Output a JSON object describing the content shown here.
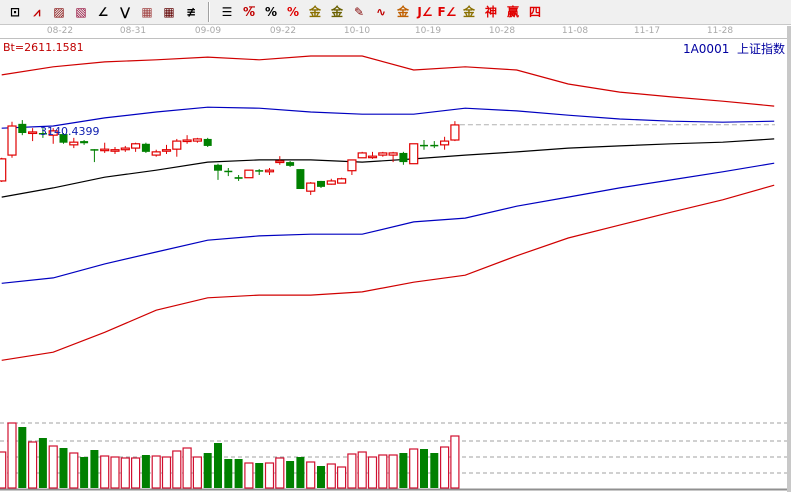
{
  "toolbar": {
    "tools": [
      {
        "name": "rect-tool-icon",
        "glyph": "⊡",
        "color": "#000"
      },
      {
        "name": "fan-lines-icon",
        "glyph": "⩘",
        "color": "#c00000"
      },
      {
        "name": "gann-fan-icon",
        "glyph": "▨",
        "color": "#800000"
      },
      {
        "name": "gann-box-icon",
        "glyph": "▧",
        "color": "#900030"
      },
      {
        "name": "angle-line-icon",
        "glyph": "∠",
        "color": "#000"
      },
      {
        "name": "zigzag-icon",
        "glyph": "⋁",
        "color": "#000"
      },
      {
        "name": "grid-icon",
        "glyph": "▦",
        "color": "#a04040"
      },
      {
        "name": "grid-dark-icon",
        "glyph": "▦",
        "color": "#600000"
      },
      {
        "name": "parallel-lines-icon",
        "glyph": "≢",
        "color": "#000"
      },
      {
        "sep": true
      },
      {
        "name": "bars-icon",
        "glyph": "☰",
        "color": "#000"
      },
      {
        "name": "percent-line-icon",
        "glyph": "%̅",
        "color": "#c00000"
      },
      {
        "name": "percent-icon",
        "glyph": "%",
        "color": "#000"
      },
      {
        "name": "percent-red-icon",
        "glyph": "%",
        "color": "#e00000"
      },
      {
        "name": "gold-circle-icon",
        "glyph": "金",
        "color": "#8a7000"
      },
      {
        "name": "gold-lines-icon",
        "glyph": "金",
        "color": "#6a6000"
      },
      {
        "name": "pen-icon",
        "glyph": "✎",
        "color": "#800000"
      },
      {
        "name": "wave-icon",
        "glyph": "∿",
        "color": "#c00000"
      },
      {
        "name": "gold-red-icon",
        "glyph": "金",
        "color": "#c06000"
      },
      {
        "name": "j-lines-icon",
        "glyph": "J∠",
        "color": "#e00000"
      },
      {
        "name": "f-lines-icon",
        "glyph": "F∠",
        "color": "#e00000"
      },
      {
        "name": "gold-angle-icon",
        "glyph": "金",
        "color": "#8a7000"
      },
      {
        "name": "shen-icon",
        "glyph": "神",
        "color": "#e00000"
      },
      {
        "name": "ying-icon",
        "glyph": "赢",
        "color": "#e00000"
      },
      {
        "name": "si-icon",
        "glyph": "四",
        "color": "#e00000"
      }
    ]
  },
  "header": {
    "bt_label": "Bt=2611.1581",
    "code": "1A0001",
    "name": "上证指数",
    "price_label": "3140.4399"
  },
  "dates": [
    "08-22",
    "08-31",
    "09-09",
    "09-22",
    "10-10",
    "10-19",
    "10-28",
    "11-08",
    "11-17",
    "11-28"
  ],
  "colors": {
    "up": "#e00000",
    "down": "#008000",
    "upper_outer": "#d00000",
    "upper_inner": "#0000c0",
    "mid": "#000000",
    "lower_inner": "#0000c0",
    "lower_outer": "#d00000",
    "grid": "#a0a0a0"
  },
  "chart_data": {
    "type": "candlestick",
    "ohlc": [
      [
        3036,
        3079,
        3034,
        3077
      ],
      [
        3084,
        3146,
        3079,
        3138
      ],
      [
        3142,
        3149,
        3121,
        3125
      ],
      [
        3125,
        3134,
        3110,
        3127
      ],
      [
        3125,
        3134,
        3116,
        3123
      ],
      [
        3121,
        3134,
        3105,
        3129
      ],
      [
        3123,
        3125,
        3105,
        3107
      ],
      [
        3103,
        3116,
        3097,
        3108
      ],
      [
        3110,
        3112,
        3103,
        3106
      ],
      [
        3095,
        3095,
        3071,
        3094
      ],
      [
        3094,
        3107,
        3088,
        3095
      ],
      [
        3092,
        3099,
        3086,
        3094
      ],
      [
        3094,
        3101,
        3090,
        3097
      ],
      [
        3097,
        3107,
        3090,
        3105
      ],
      [
        3105,
        3107,
        3088,
        3090
      ],
      [
        3084,
        3094,
        3081,
        3090
      ],
      [
        3092,
        3103,
        3086,
        3094
      ],
      [
        3095,
        3114,
        3081,
        3110
      ],
      [
        3110,
        3121,
        3105,
        3112
      ],
      [
        3110,
        3116,
        3107,
        3114
      ],
      [
        3114,
        3116,
        3099,
        3101
      ],
      [
        3066,
        3068,
        3038,
        3055
      ],
      [
        3055,
        3060,
        3045,
        3053
      ],
      [
        3043,
        3047,
        3036,
        3040
      ],
      [
        3042,
        3056,
        3042,
        3056
      ],
      [
        3056,
        3058,
        3047,
        3055
      ],
      [
        3053,
        3060,
        3047,
        3056
      ],
      [
        3071,
        3082,
        3066,
        3073
      ],
      [
        3071,
        3073,
        3062,
        3064
      ],
      [
        3058,
        3058,
        3021,
        3021
      ],
      [
        3017,
        3034,
        3010,
        3032
      ],
      [
        3036,
        3036,
        3023,
        3025
      ],
      [
        3030,
        3040,
        3029,
        3036
      ],
      [
        3032,
        3042,
        3032,
        3040
      ],
      [
        3055,
        3075,
        3047,
        3075
      ],
      [
        3079,
        3090,
        3079,
        3088
      ],
      [
        3081,
        3090,
        3077,
        3082
      ],
      [
        3084,
        3090,
        3081,
        3088
      ],
      [
        3084,
        3090,
        3071,
        3088
      ],
      [
        3088,
        3090,
        3066,
        3071
      ],
      [
        3068,
        3105,
        3068,
        3105
      ],
      [
        3103,
        3112,
        3094,
        3101
      ],
      [
        3103,
        3110,
        3097,
        3101
      ],
      [
        3103,
        3118,
        3094,
        3110
      ],
      [
        3112,
        3147,
        3110,
        3140
      ]
    ],
    "volume": [
      36,
      65,
      61,
      46,
      50,
      42,
      40,
      35,
      31,
      38,
      32,
      31,
      30,
      30,
      33,
      32,
      31,
      37,
      40,
      31,
      35,
      45,
      29,
      29,
      25,
      25,
      25,
      30,
      27,
      31,
      26,
      22,
      24,
      21,
      34,
      36,
      31,
      33,
      33,
      35,
      39,
      39,
      35,
      41,
      52
    ],
    "bands_step": 5,
    "bands": {
      "upper_outer": [
        3233,
        3248,
        3257,
        3261,
        3266,
        3261,
        3268,
        3268,
        3242,
        3248,
        3242,
        3216,
        3201,
        3192,
        3184,
        3175
      ],
      "upper_inner": [
        3134,
        3138,
        3153,
        3164,
        3173,
        3171,
        3164,
        3160,
        3160,
        3171,
        3166,
        3158,
        3151,
        3147,
        3145,
        3147
      ],
      "mid": [
        3006,
        3023,
        3043,
        3056,
        3071,
        3075,
        3075,
        3071,
        3077,
        3084,
        3090,
        3097,
        3101,
        3105,
        3108,
        3114
      ],
      "lower_inner": [
        2846,
        2856,
        2882,
        2904,
        2926,
        2934,
        2937,
        2937,
        2960,
        2967,
        2989,
        3006,
        3023,
        3038,
        3053,
        3069
      ],
      "lower_outer": [
        2703,
        2718,
        2755,
        2796,
        2819,
        2824,
        2824,
        2830,
        2848,
        2861,
        2897,
        2930,
        2954,
        2978,
        3001,
        3028
      ]
    },
    "last_close_ref": 3140.44
  }
}
